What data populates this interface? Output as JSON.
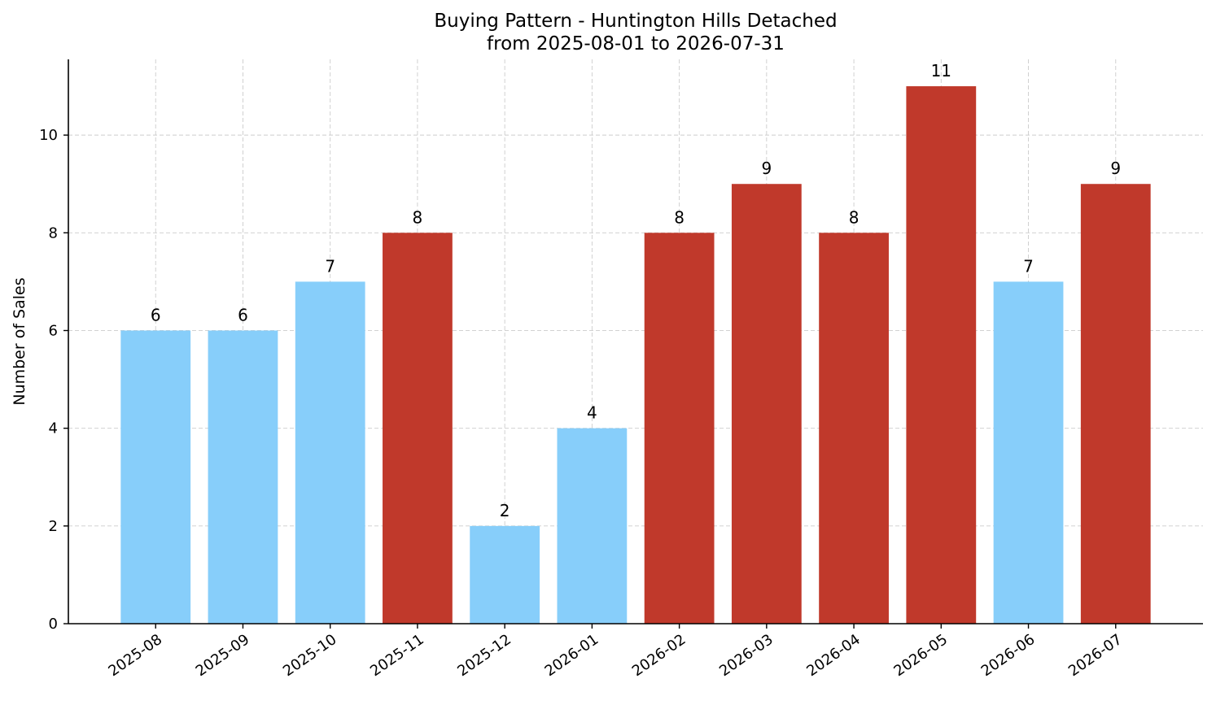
{
  "chart_data": {
    "type": "bar",
    "title": "Buying Pattern - Huntington Hills Detached",
    "subtitle": "from 2025-08-01 to 2026-07-31",
    "xlabel": "",
    "ylabel": "Number of Sales",
    "categories": [
      "2025-08",
      "2025-09",
      "2025-10",
      "2025-11",
      "2025-12",
      "2026-01",
      "2026-02",
      "2026-03",
      "2026-04",
      "2026-05",
      "2026-06",
      "2026-07"
    ],
    "values": [
      6,
      6,
      7,
      8,
      2,
      4,
      8,
      9,
      8,
      11,
      7,
      9
    ],
    "ylim": [
      0,
      11.55
    ],
    "yticks": [
      0,
      2,
      4,
      6,
      8,
      10
    ],
    "grid": true,
    "colors": {
      "low": "#87cefa",
      "high": "#c0392b"
    },
    "bar_colors": [
      "low",
      "low",
      "low",
      "high",
      "low",
      "low",
      "high",
      "high",
      "high",
      "high",
      "low",
      "high"
    ]
  }
}
